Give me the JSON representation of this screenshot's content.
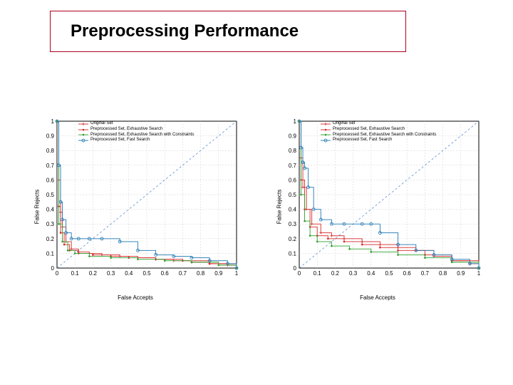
{
  "title": {
    "text": "Preprocessing Performance",
    "border_color": "#b00020",
    "fontsize": 24
  },
  "charts": {
    "xlabel": "False Accepts",
    "ylabel": "False Rejects",
    "xlim": [
      0,
      1
    ],
    "ylim": [
      0,
      1
    ],
    "xtick_step": 0.1,
    "ytick_step": 0.1,
    "xtick_labels": [
      "0",
      "0.1",
      "0.2",
      "0.3",
      "0.4",
      "0.5",
      "0.6",
      "0.7",
      "0.8",
      "0.9",
      "1"
    ],
    "ytick_labels": [
      "0",
      "0.1",
      "0.2",
      "0.3",
      "0.4",
      "0.5",
      "0.6",
      "0.7",
      "0.8",
      "0.9",
      "1"
    ],
    "grid_color": "#cfcfcf",
    "axis_color": "#000000",
    "background_color": "#ffffff",
    "diagonal_color": "#5e8fd6",
    "diagonal_dash": "3,3",
    "label_fontsize": 8,
    "tick_fontsize": 8,
    "legend_fontsize": 6,
    "legend": [
      {
        "label": "Original Set",
        "color": "#d62728",
        "marker": "plus"
      },
      {
        "label": "Preprocessed Set, Exhaustive Search",
        "color": "#d62728",
        "marker": "dot"
      },
      {
        "label": "Preprocessed Set, Exhaustive Search with Constraints",
        "color": "#2ca02c",
        "marker": "dot"
      },
      {
        "label": "Preprocessed Set, Fast Search",
        "color": "#1f77b4",
        "marker": "circle"
      }
    ],
    "left": {
      "series": [
        {
          "name": "Original Set",
          "color": "#d62728",
          "marker": "plus",
          "points": [
            [
              0.0,
              1.0
            ],
            [
              0.01,
              0.6
            ],
            [
              0.02,
              0.38
            ],
            [
              0.03,
              0.28
            ],
            [
              0.05,
              0.18
            ],
            [
              0.08,
              0.13
            ],
            [
              0.12,
              0.11
            ],
            [
              0.18,
              0.1
            ],
            [
              0.25,
              0.09
            ],
            [
              0.35,
              0.08
            ],
            [
              0.45,
              0.07
            ],
            [
              0.55,
              0.06
            ],
            [
              0.65,
              0.05
            ],
            [
              0.75,
              0.04
            ],
            [
              0.85,
              0.03
            ],
            [
              0.95,
              0.02
            ],
            [
              1.0,
              0.0
            ]
          ]
        },
        {
          "name": "Preprocessed Set, Exhaustive Search",
          "color": "#d62728",
          "marker": "dot",
          "points": [
            [
              0.0,
              1.0
            ],
            [
              0.01,
              0.42
            ],
            [
              0.02,
              0.24
            ],
            [
              0.04,
              0.16
            ],
            [
              0.07,
              0.12
            ],
            [
              0.12,
              0.1
            ],
            [
              0.2,
              0.09
            ],
            [
              0.3,
              0.08
            ],
            [
              0.4,
              0.07
            ],
            [
              0.55,
              0.06
            ],
            [
              0.7,
              0.05
            ],
            [
              0.85,
              0.03
            ],
            [
              1.0,
              0.0
            ]
          ]
        },
        {
          "name": "Preprocessed Set, Exhaustive Search with Constraints",
          "color": "#2ca02c",
          "marker": "dot",
          "points": [
            [
              0.0,
              1.0
            ],
            [
              0.01,
              0.3
            ],
            [
              0.03,
              0.18
            ],
            [
              0.06,
              0.12
            ],
            [
              0.1,
              0.1
            ],
            [
              0.18,
              0.08
            ],
            [
              0.3,
              0.07
            ],
            [
              0.45,
              0.06
            ],
            [
              0.6,
              0.05
            ],
            [
              0.75,
              0.04
            ],
            [
              0.9,
              0.02
            ],
            [
              1.0,
              0.0
            ]
          ]
        },
        {
          "name": "Preprocessed Set, Fast Search",
          "color": "#1f77b4",
          "marker": "circle",
          "points": [
            [
              0.0,
              1.0
            ],
            [
              0.01,
              0.7
            ],
            [
              0.02,
              0.45
            ],
            [
              0.03,
              0.33
            ],
            [
              0.05,
              0.24
            ],
            [
              0.08,
              0.2
            ],
            [
              0.12,
              0.2
            ],
            [
              0.18,
              0.2
            ],
            [
              0.25,
              0.2
            ],
            [
              0.35,
              0.18
            ],
            [
              0.45,
              0.12
            ],
            [
              0.55,
              0.09
            ],
            [
              0.65,
              0.08
            ],
            [
              0.75,
              0.07
            ],
            [
              0.85,
              0.05
            ],
            [
              0.95,
              0.03
            ],
            [
              1.0,
              0.0
            ]
          ]
        }
      ]
    },
    "right": {
      "series": [
        {
          "name": "Original Set",
          "color": "#d62728",
          "marker": "plus",
          "points": [
            [
              0.0,
              1.0
            ],
            [
              0.01,
              0.75
            ],
            [
              0.02,
              0.55
            ],
            [
              0.04,
              0.4
            ],
            [
              0.07,
              0.3
            ],
            [
              0.12,
              0.24
            ],
            [
              0.18,
              0.22
            ],
            [
              0.25,
              0.2
            ],
            [
              0.35,
              0.18
            ],
            [
              0.45,
              0.16
            ],
            [
              0.55,
              0.14
            ],
            [
              0.65,
              0.12
            ],
            [
              0.75,
              0.08
            ],
            [
              0.85,
              0.05
            ],
            [
              0.95,
              0.03
            ],
            [
              1.0,
              0.0
            ]
          ]
        },
        {
          "name": "Preprocessed Set, Exhaustive Search",
          "color": "#d62728",
          "marker": "dot",
          "points": [
            [
              0.0,
              1.0
            ],
            [
              0.01,
              0.6
            ],
            [
              0.03,
              0.4
            ],
            [
              0.06,
              0.28
            ],
            [
              0.1,
              0.22
            ],
            [
              0.16,
              0.2
            ],
            [
              0.25,
              0.18
            ],
            [
              0.35,
              0.16
            ],
            [
              0.45,
              0.14
            ],
            [
              0.55,
              0.12
            ],
            [
              0.7,
              0.09
            ],
            [
              0.85,
              0.05
            ],
            [
              1.0,
              0.0
            ]
          ]
        },
        {
          "name": "Preprocessed Set, Exhaustive Search with Constraints",
          "color": "#2ca02c",
          "marker": "dot",
          "points": [
            [
              0.0,
              1.0
            ],
            [
              0.01,
              0.5
            ],
            [
              0.03,
              0.32
            ],
            [
              0.06,
              0.22
            ],
            [
              0.1,
              0.18
            ],
            [
              0.18,
              0.15
            ],
            [
              0.28,
              0.13
            ],
            [
              0.4,
              0.11
            ],
            [
              0.55,
              0.09
            ],
            [
              0.7,
              0.07
            ],
            [
              0.85,
              0.04
            ],
            [
              1.0,
              0.0
            ]
          ]
        },
        {
          "name": "Preprocessed Set, Fast Search",
          "color": "#1f77b4",
          "marker": "circle",
          "points": [
            [
              0.0,
              1.0
            ],
            [
              0.01,
              0.82
            ],
            [
              0.02,
              0.72
            ],
            [
              0.03,
              0.68
            ],
            [
              0.05,
              0.55
            ],
            [
              0.08,
              0.4
            ],
            [
              0.12,
              0.33
            ],
            [
              0.18,
              0.3
            ],
            [
              0.25,
              0.3
            ],
            [
              0.35,
              0.3
            ],
            [
              0.4,
              0.3
            ],
            [
              0.45,
              0.24
            ],
            [
              0.55,
              0.16
            ],
            [
              0.65,
              0.12
            ],
            [
              0.75,
              0.09
            ],
            [
              0.85,
              0.06
            ],
            [
              0.95,
              0.03
            ],
            [
              1.0,
              0.0
            ]
          ]
        }
      ]
    }
  }
}
